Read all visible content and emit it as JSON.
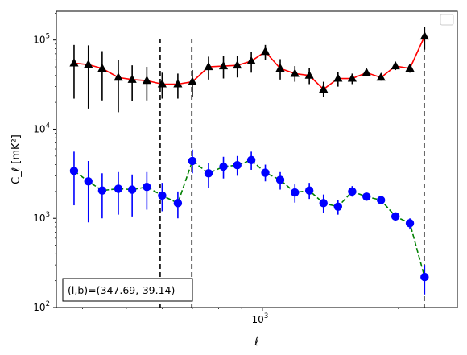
{
  "chart_data": {
    "type": "scatter",
    "title": "",
    "xlabel": "ℓ",
    "ylabel": "C_ℓ  [mK²]",
    "xscale": "log",
    "yscale": "log",
    "xlim": [
      350,
      2700
    ],
    "ylim": [
      100,
      210000
    ],
    "x_tick_labels": [
      {
        "value": 1000,
        "base": "10",
        "exp": "3"
      }
    ],
    "y_tick_labels": [
      {
        "value": 100,
        "base": "10",
        "exp": "2"
      },
      {
        "value": 1000,
        "base": "10",
        "exp": "3"
      },
      {
        "value": 10000,
        "base": "10",
        "exp": "4"
      },
      {
        "value": 100000,
        "base": "10",
        "exp": "5"
      }
    ],
    "grid": false,
    "legend": {
      "placement": "top-right",
      "entries": []
    },
    "vertical_lines": [
      594,
      698,
      2280
    ],
    "annotation": {
      "text": "(l,b)=(347.69,-39.14)",
      "placement": "bottom-left"
    },
    "series": [
      {
        "marker": "triangle",
        "marker_color": "#000000",
        "line_color": "#ff0000",
        "errorbar_color": "#000000",
        "points": [
          {
            "x": 383,
            "y": 55000,
            "lo": 22000,
            "hi": 88000
          },
          {
            "x": 412,
            "y": 53000,
            "lo": 17000,
            "hi": 87000
          },
          {
            "x": 442,
            "y": 48000,
            "lo": 21000,
            "hi": 75000
          },
          {
            "x": 480,
            "y": 38000,
            "lo": 15500,
            "hi": 60000
          },
          {
            "x": 515,
            "y": 36000,
            "lo": 20500,
            "hi": 52000
          },
          {
            "x": 555,
            "y": 35000,
            "lo": 21000,
            "hi": 50000
          },
          {
            "x": 600,
            "y": 32000,
            "lo": 22000,
            "hi": 43000
          },
          {
            "x": 650,
            "y": 32000,
            "lo": 22000,
            "hi": 42000
          },
          {
            "x": 700,
            "y": 34000,
            "lo": 23000,
            "hi": 46000
          },
          {
            "x": 760,
            "y": 50000,
            "lo": 36000,
            "hi": 65000
          },
          {
            "x": 820,
            "y": 51000,
            "lo": 37000,
            "hi": 66000
          },
          {
            "x": 880,
            "y": 52000,
            "lo": 38000,
            "hi": 66000
          },
          {
            "x": 945,
            "y": 58000,
            "lo": 43000,
            "hi": 73000
          },
          {
            "x": 1015,
            "y": 74000,
            "lo": 60000,
            "hi": 88000
          },
          {
            "x": 1095,
            "y": 48000,
            "lo": 36000,
            "hi": 61000
          },
          {
            "x": 1180,
            "y": 42000,
            "lo": 34000,
            "hi": 51000
          },
          {
            "x": 1270,
            "y": 40000,
            "lo": 32000,
            "hi": 49000
          },
          {
            "x": 1365,
            "y": 28000,
            "lo": 23000,
            "hi": 34000
          },
          {
            "x": 1470,
            "y": 37000,
            "lo": 30000,
            "hi": 44000
          },
          {
            "x": 1580,
            "y": 37000,
            "lo": 32000,
            "hi": 42000
          },
          {
            "x": 1700,
            "y": 43000,
            "lo": 39000,
            "hi": 47000
          },
          {
            "x": 1830,
            "y": 38000,
            "lo": 35000,
            "hi": 41000
          },
          {
            "x": 1970,
            "y": 51000,
            "lo": 46000,
            "hi": 56000
          },
          {
            "x": 2120,
            "y": 48000,
            "lo": 43000,
            "hi": 53000
          },
          {
            "x": 2285,
            "y": 110000,
            "lo": 78000,
            "hi": 140000
          }
        ]
      },
      {
        "marker": "circle",
        "marker_color": "#0000ff",
        "line_color": "#008000",
        "line_style": "dashed",
        "errorbar_color": "#0000ff",
        "points": [
          {
            "x": 383,
            "y": 3400,
            "lo": 1400,
            "hi": 5600
          },
          {
            "x": 412,
            "y": 2600,
            "lo": 900,
            "hi": 4400
          },
          {
            "x": 442,
            "y": 2050,
            "lo": 1000,
            "hi": 3200
          },
          {
            "x": 480,
            "y": 2150,
            "lo": 1100,
            "hi": 3300
          },
          {
            "x": 515,
            "y": 2100,
            "lo": 1050,
            "hi": 3100
          },
          {
            "x": 555,
            "y": 2250,
            "lo": 1250,
            "hi": 3300
          },
          {
            "x": 600,
            "y": 1800,
            "lo": 1200,
            "hi": 2500
          },
          {
            "x": 650,
            "y": 1480,
            "lo": 1000,
            "hi": 2000
          },
          {
            "x": 700,
            "y": 4400,
            "lo": 3200,
            "hi": 5900
          },
          {
            "x": 760,
            "y": 3200,
            "lo": 2200,
            "hi": 4200
          },
          {
            "x": 820,
            "y": 3800,
            "lo": 2800,
            "hi": 4900
          },
          {
            "x": 880,
            "y": 3950,
            "lo": 3000,
            "hi": 5000
          },
          {
            "x": 945,
            "y": 4500,
            "lo": 3500,
            "hi": 5600
          },
          {
            "x": 1015,
            "y": 3250,
            "lo": 2600,
            "hi": 4000
          },
          {
            "x": 1095,
            "y": 2700,
            "lo": 2100,
            "hi": 3300
          },
          {
            "x": 1180,
            "y": 1950,
            "lo": 1500,
            "hi": 2400
          },
          {
            "x": 1270,
            "y": 2050,
            "lo": 1650,
            "hi": 2500
          },
          {
            "x": 1365,
            "y": 1480,
            "lo": 1150,
            "hi": 1850
          },
          {
            "x": 1470,
            "y": 1350,
            "lo": 1100,
            "hi": 1600
          },
          {
            "x": 1580,
            "y": 2000,
            "lo": 1750,
            "hi": 2300
          },
          {
            "x": 1700,
            "y": 1750,
            "lo": 1600,
            "hi": 1900
          },
          {
            "x": 1830,
            "y": 1600,
            "lo": 1480,
            "hi": 1720
          },
          {
            "x": 1970,
            "y": 1050,
            "lo": 950,
            "hi": 1150
          },
          {
            "x": 2120,
            "y": 880,
            "lo": 750,
            "hi": 1000
          },
          {
            "x": 2285,
            "y": 220,
            "lo": 140,
            "hi": 300
          }
        ]
      }
    ]
  }
}
